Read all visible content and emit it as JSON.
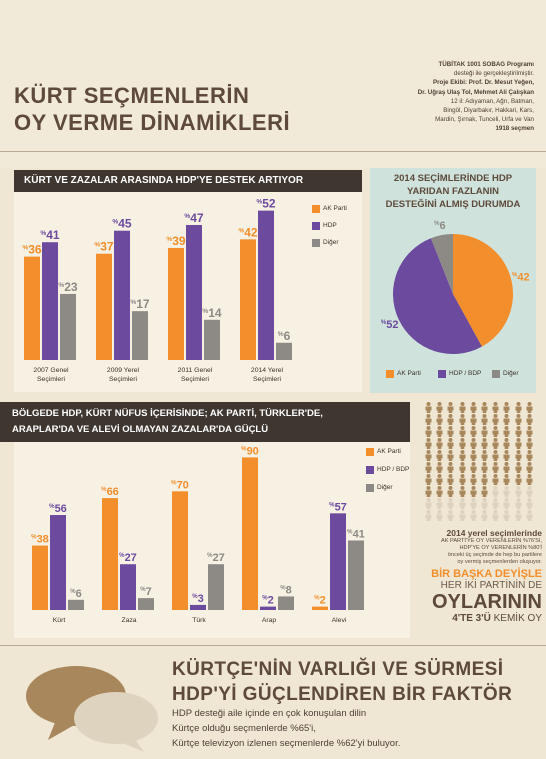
{
  "header": {
    "title_line1": "KÜRT SEÇMENLERİN",
    "title_line2": "OY VERME DİNAMİKLERİ",
    "credits": [
      "TÜBİTAK 1001 SOBAG Programı",
      "desteği ile gerçekleştirilmiştir.",
      "Proje Ekibi: Prof. Dr. Mesut Yeğen,",
      "Dr. Uğraş Ulaş Tol, Mehmet Ali Çalışkan",
      "12 il: Adıyaman, Ağrı, Batman,",
      "Bingöl, Diyarbakır, Hakkari, Kars,",
      "Mardin, Şırnak, Tunceli, Urfa ve Van",
      "1918 seçmen"
    ]
  },
  "colors": {
    "orange": "#f28e2b",
    "purple": "#6c4a9e",
    "grey": "#8d8985",
    "brown": "#5d4a3b",
    "teal": "#cfe3dc"
  },
  "chart1": {
    "title": "KÜRT VE ZAZALAR ARASINDA HDP'YE DESTEK ARTIYOR",
    "legend": [
      "AK Parti",
      "HDP",
      "Diğer"
    ]
  },
  "chart2": {
    "title_line1": "2014 SEÇİMLERİNDE HDP",
    "title_line2": "YARIDAN FAZLANIN",
    "title_line3": "DESTEĞİNİ ALMIŞ DURUMDA",
    "legend": [
      "AK Parti",
      "HDP / BDP",
      "Diğer"
    ]
  },
  "chart3": {
    "title_line1": "BÖLGEDE HDP, KÜRT NÜFUS İÇERİSİNDE; AK PARTİ, TÜRKLER'DE,",
    "title_line2": "ARAPLAR'DA VE ALEVİ OLMAYAN ZAZALAR'DA GÜÇLÜ",
    "legend": [
      "AK Parti",
      "HDP / BDP",
      "Diğer"
    ]
  },
  "chart_data": [
    {
      "type": "bar",
      "title": "KÜRT VE ZAZALAR ARASINDA HDP'YE DESTEK ARTIYOR",
      "categories": [
        "2007 Genel Seçimleri",
        "2009 Yerel Seçimleri",
        "2011 Genel Seçimleri",
        "2014 Yerel Seçimleri"
      ],
      "series": [
        {
          "name": "AK Parti",
          "values": [
            36,
            37,
            39,
            42
          ]
        },
        {
          "name": "HDP",
          "values": [
            41,
            45,
            47,
            52
          ]
        },
        {
          "name": "Diğer",
          "values": [
            23,
            17,
            14,
            6
          ]
        }
      ],
      "ylim": [
        0,
        55
      ]
    },
    {
      "type": "pie",
      "title": "2014 SEÇİMLERİNDE HDP YARIDAN FAZLANIN DESTEĞİNİ ALMIŞ DURUMDA",
      "categories": [
        "AK Parti",
        "HDP / BDP",
        "Diğer"
      ],
      "values": [
        42,
        52,
        6
      ]
    },
    {
      "type": "bar",
      "title": "BÖLGEDE HDP, KÜRT NÜFUS İÇERİSİNDE; AK PARTİ, TÜRKLER'DE, ARAPLAR'DA VE ALEVİ OLMAYAN ZAZALAR'DA GÜÇLÜ",
      "categories": [
        "Kürt",
        "Zaza",
        "Türk",
        "Arap",
        "Alevi"
      ],
      "series": [
        {
          "name": "AK Parti",
          "values": [
            38,
            66,
            70,
            90,
            2
          ]
        },
        {
          "name": "HDP / BDP",
          "values": [
            56,
            27,
            3,
            2,
            57
          ]
        },
        {
          "name": "Diğer",
          "values": [
            6,
            7,
            27,
            8,
            41
          ]
        }
      ],
      "ylim": [
        0,
        92
      ]
    }
  ],
  "people_stat": {
    "highlighted": 76,
    "total": 100,
    "heading": "2014 yerel seçimlerinde",
    "line1": "AK PARTİ'YE OY VERENLERİN %76'SI,",
    "line2": "HDP'YE OY VERENLERİN %80'İ",
    "line3": "önceki üç seçimde de hep bu partilere",
    "line4": "oy vermiş seçmenlerden oluşuyor.",
    "big1": "BİR BAŞKA DEYİŞLE",
    "big2": "HER İKİ PARTİNİN DE",
    "big3": "OYLARININ",
    "big4a": "4'TE 3'Ü",
    "big4b": "KEMİK OY"
  },
  "bottom": {
    "title_line1": "KÜRTÇE'NİN VARLIĞI VE SÜRMESİ",
    "title_line2": "HDP'Yİ GÜÇLENDİREN BİR FAKTÖR",
    "text_line1": "HDP desteği aile içinde en çok konuşulan dilin",
    "text_line2": "Kürtçe olduğu seçmenlerde %65'i,",
    "text_line3": "Kürtçe televizyon izlenen seçmenlerde %62'yi buluyor."
  }
}
